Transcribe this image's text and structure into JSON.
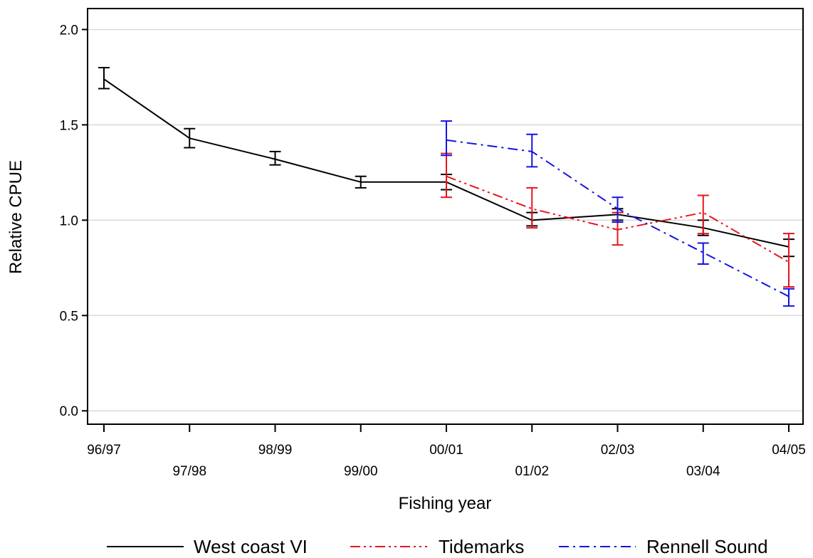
{
  "chart_data": {
    "type": "line",
    "x_label": "Fishing year",
    "y_label": "Relative CPUE",
    "categories": [
      "96/97",
      "97/98",
      "98/99",
      "99/00",
      "00/01",
      "01/02",
      "02/03",
      "03/04",
      "04/05"
    ],
    "y_ticks": [
      "0.0",
      "0.5",
      "1.0",
      "1.5",
      "2.0"
    ],
    "ylim": [
      -0.07,
      2.11
    ],
    "grid": "horizontal",
    "legend_position": "bottom",
    "series": [
      {
        "name": "West coast VI",
        "color": "#000000",
        "dash": "solid",
        "values": [
          1.74,
          1.43,
          1.32,
          1.2,
          1.2,
          1.0,
          1.03,
          0.96,
          0.86
        ],
        "err_low": [
          1.69,
          1.38,
          1.29,
          1.17,
          1.16,
          0.97,
          1.0,
          0.92,
          0.81
        ],
        "err_high": [
          1.8,
          1.48,
          1.36,
          1.23,
          1.24,
          1.04,
          1.06,
          1.0,
          0.9
        ]
      },
      {
        "name": "Tidemarks",
        "color": "#e8141c",
        "dash": "dashdotdot",
        "values": [
          null,
          null,
          null,
          null,
          1.23,
          1.06,
          0.95,
          1.04,
          0.78
        ],
        "err_low": [
          null,
          null,
          null,
          null,
          1.12,
          0.96,
          0.87,
          0.93,
          0.65
        ],
        "err_high": [
          null,
          null,
          null,
          null,
          1.35,
          1.17,
          1.04,
          1.13,
          0.93
        ]
      },
      {
        "name": "Rennell Sound",
        "color": "#1414e0",
        "dash": "dashdot",
        "values": [
          null,
          null,
          null,
          null,
          1.42,
          1.36,
          1.06,
          0.83,
          0.6
        ],
        "err_low": [
          null,
          null,
          null,
          null,
          1.34,
          1.28,
          0.99,
          0.77,
          0.55
        ],
        "err_high": [
          null,
          null,
          null,
          null,
          1.52,
          1.45,
          1.12,
          0.88,
          0.64
        ]
      }
    ]
  }
}
